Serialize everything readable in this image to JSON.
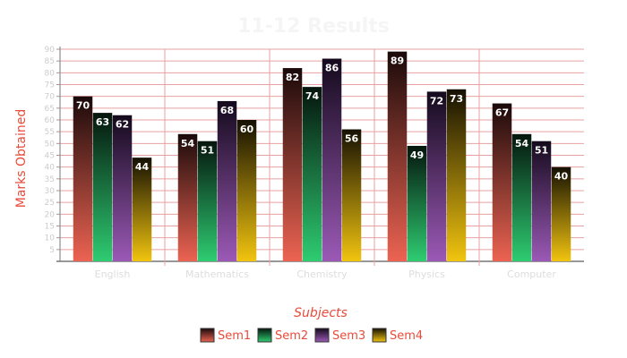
{
  "chart_data": {
    "type": "bar",
    "title": "11-12 Results",
    "xlabel": "Subjects",
    "ylabel": "Marks Obtained",
    "categories": [
      "English",
      "Mathematics",
      "Chemistry",
      "Physics",
      "Computer"
    ],
    "series": [
      {
        "name": "Sem1",
        "values": [
          70,
          54,
          82,
          89,
          67
        ],
        "color_top": "#1a0a0a",
        "color_bottom": "#ec6352"
      },
      {
        "name": "Sem2",
        "values": [
          63,
          51,
          74,
          49,
          54
        ],
        "color_top": "#05150d",
        "color_bottom": "#2ecc71"
      },
      {
        "name": "Sem3",
        "values": [
          62,
          68,
          86,
          72,
          51
        ],
        "color_top": "#140a1c",
        "color_bottom": "#9b59b6"
      },
      {
        "name": "Sem4",
        "values": [
          44,
          60,
          56,
          73,
          40
        ],
        "color_top": "#151003",
        "color_bottom": "#f1c40f"
      }
    ],
    "ylim": [
      0,
      90
    ],
    "yticks": [
      5,
      10,
      15,
      20,
      25,
      30,
      35,
      40,
      45,
      50,
      55,
      60,
      65,
      70,
      75,
      80,
      85,
      90
    ],
    "grid": true,
    "legend_position": "bottom",
    "colors": {
      "title": "#f5f5f5",
      "axis_label": "#e74c3c",
      "grid": "#e8a0a0",
      "tick_label": "#cccccc",
      "category_label": "#dddddd",
      "legend_text": "#e74c3c"
    }
  }
}
